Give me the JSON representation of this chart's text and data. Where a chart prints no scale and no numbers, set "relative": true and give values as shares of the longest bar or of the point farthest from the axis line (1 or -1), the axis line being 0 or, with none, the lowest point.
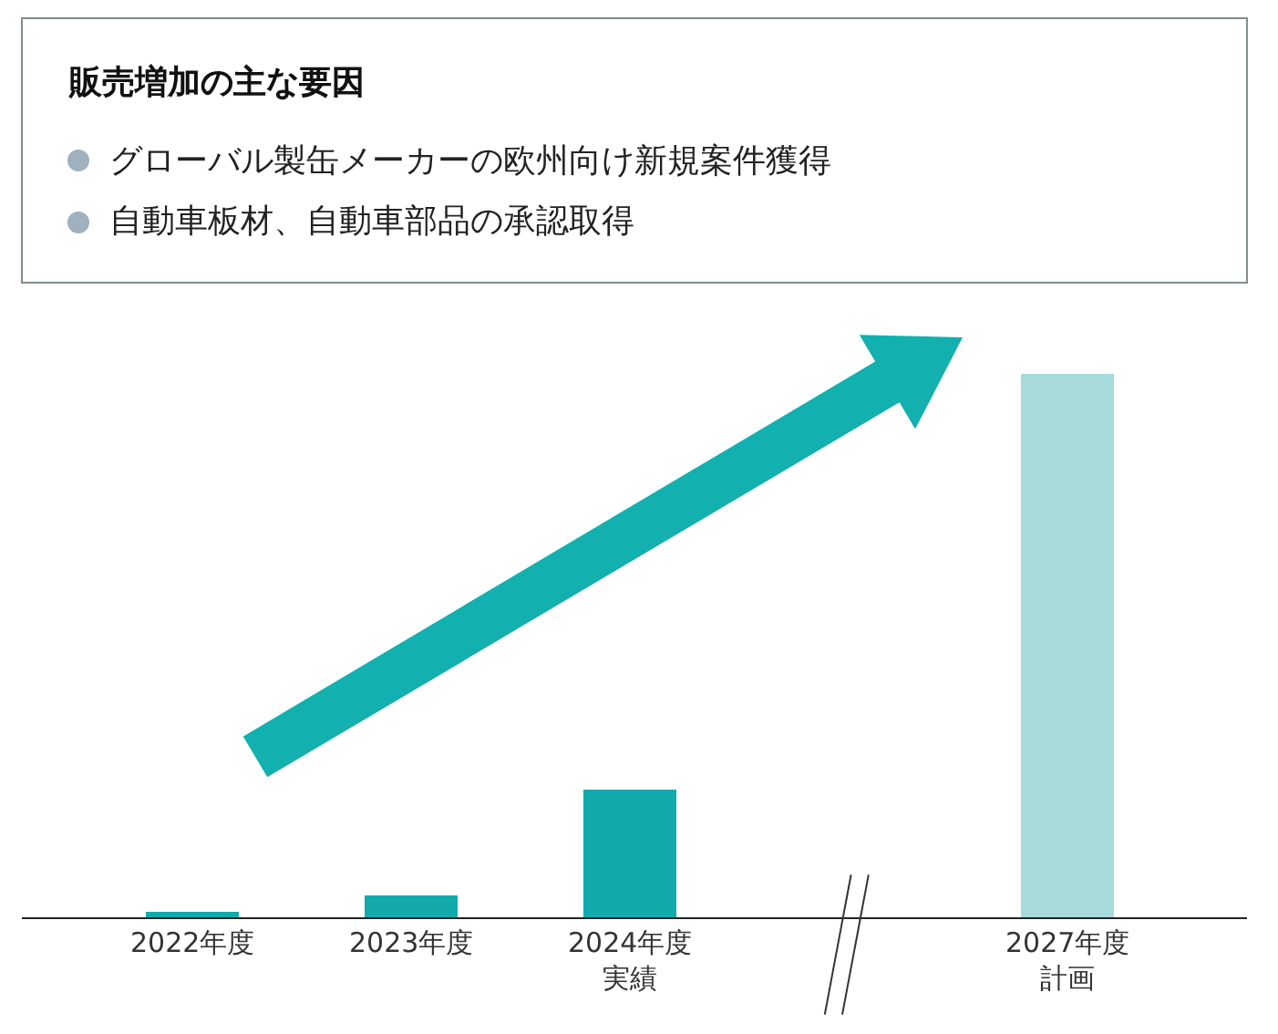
{
  "chart_data": {
    "type": "bar",
    "title": "販売増加の主な要因",
    "annotations": [
      "グローバル製缶メーカーの欧州向け新規案件獲得",
      "自動車板材、自動車部品の承認取得"
    ],
    "categories": [
      "2022年度",
      "2023年度",
      "2024年度実績",
      null,
      "2027年度計画"
    ],
    "values": [
      0.01,
      0.04,
      0.235,
      null,
      1
    ],
    "colors": [
      "#12aaaa",
      "#12aaaa",
      "#12aaaa",
      null,
      "#a6dadb"
    ],
    "relative": true
  }
}
